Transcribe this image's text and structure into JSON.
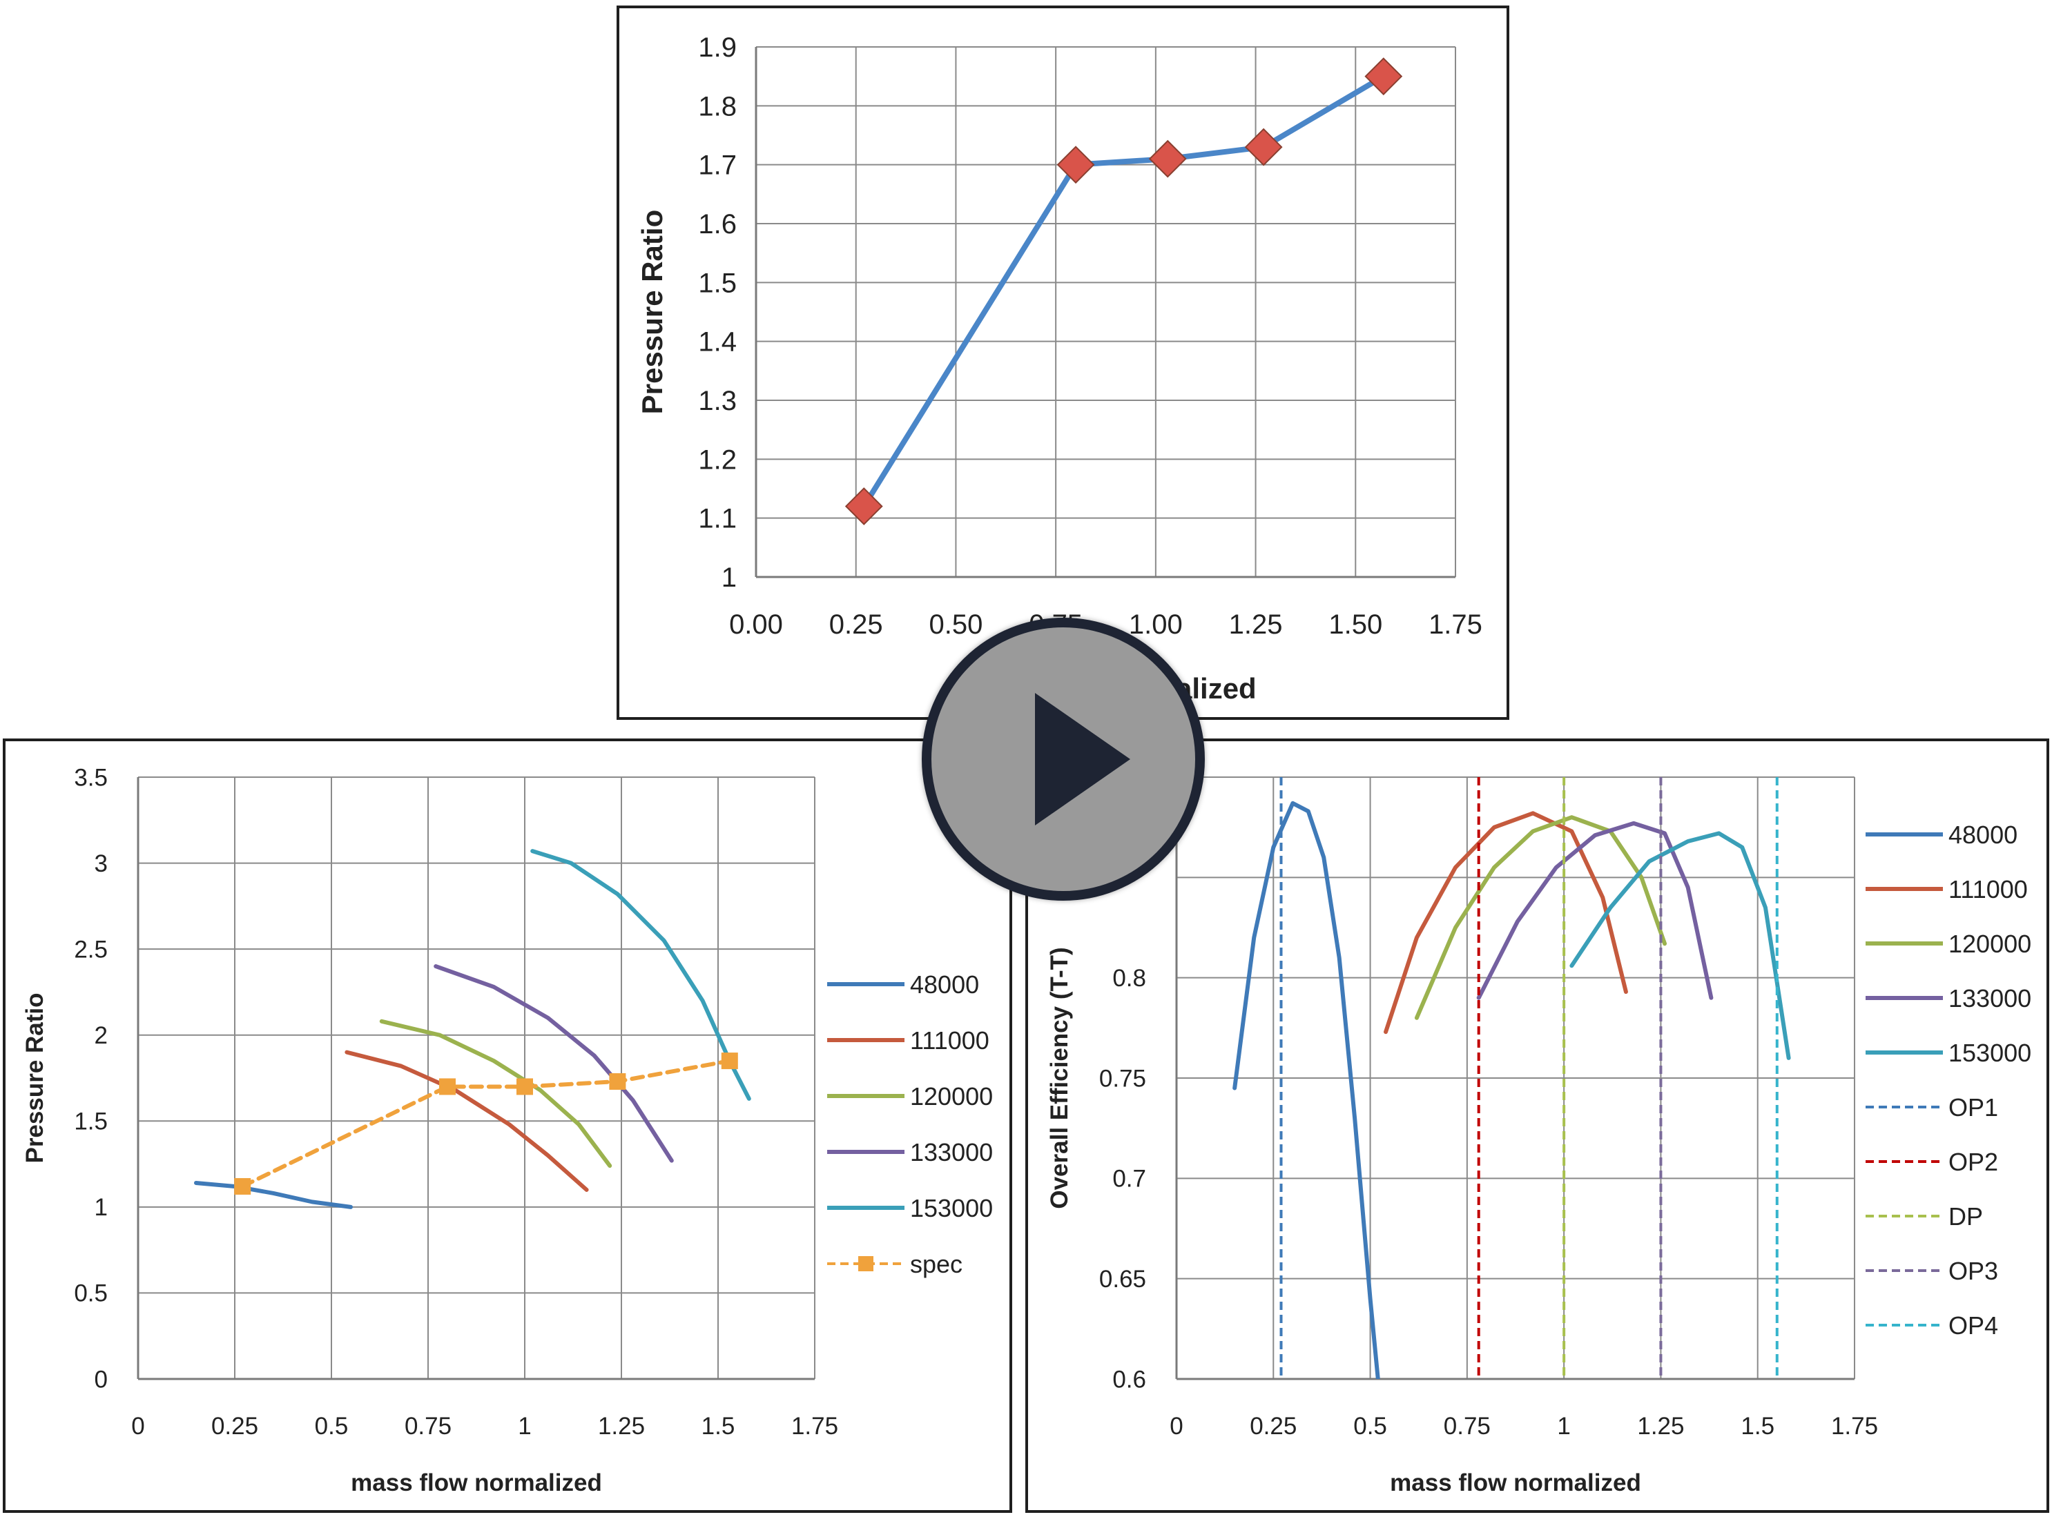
{
  "chart_data": [
    {
      "type": "line",
      "xlabel": "mass flow normalized",
      "ylabel": "Pressure Ratio",
      "xlim": [
        0,
        1.75
      ],
      "ylim": [
        1,
        1.9
      ],
      "x_ticks": [
        "0.00",
        "0.25",
        "0.50",
        "0.75",
        "1.00",
        "1.25",
        "1.50",
        "1.75"
      ],
      "y_ticks": [
        "1",
        "1.1",
        "1.2",
        "1.3",
        "1.4",
        "1.5",
        "1.6",
        "1.7",
        "1.8",
        "1.9"
      ],
      "grid": true,
      "series": [
        {
          "x": [
            0.27,
            0.8,
            1.03,
            1.27,
            1.57
          ],
          "y": [
            1.12,
            1.7,
            1.71,
            1.73,
            1.85
          ],
          "color": "#4a86c8",
          "marker": "diamond",
          "marker_color": "#d9544a"
        }
      ]
    },
    {
      "type": "line",
      "xlabel": "mass flow normalized",
      "ylabel": "Pressure Ratio",
      "xlim": [
        0,
        1.75
      ],
      "ylim": [
        0,
        3.5
      ],
      "x_ticks": [
        "0",
        "0.25",
        "0.5",
        "0.75",
        "1",
        "1.25",
        "1.5",
        "1.75"
      ],
      "y_ticks": [
        "0",
        "0.5",
        "1",
        "1.5",
        "2",
        "2.5",
        "3",
        "3.5"
      ],
      "grid": true,
      "legend_position": "right",
      "series": [
        {
          "name": "48000",
          "color": "#3f7ab8",
          "dashed": false,
          "x": [
            0.15,
            0.25,
            0.35,
            0.45,
            0.55
          ],
          "y": [
            1.14,
            1.12,
            1.08,
            1.03,
            1.0
          ]
        },
        {
          "name": "111000",
          "color": "#c55a3d",
          "dashed": false,
          "x": [
            0.54,
            0.68,
            0.82,
            0.96,
            1.06,
            1.16
          ],
          "y": [
            1.9,
            1.82,
            1.68,
            1.48,
            1.3,
            1.1
          ]
        },
        {
          "name": "120000",
          "color": "#9bb24e",
          "dashed": false,
          "x": [
            0.63,
            0.78,
            0.92,
            1.04,
            1.14,
            1.22
          ],
          "y": [
            2.08,
            2.0,
            1.85,
            1.68,
            1.48,
            1.24
          ]
        },
        {
          "name": "133000",
          "color": "#7460a0",
          "dashed": false,
          "x": [
            0.77,
            0.92,
            1.06,
            1.18,
            1.28,
            1.38
          ],
          "y": [
            2.4,
            2.28,
            2.1,
            1.88,
            1.62,
            1.27
          ]
        },
        {
          "name": "153000",
          "color": "#3a9fb8",
          "dashed": false,
          "x": [
            1.02,
            1.12,
            1.24,
            1.36,
            1.46,
            1.53,
            1.58
          ],
          "y": [
            3.07,
            3.0,
            2.82,
            2.55,
            2.2,
            1.85,
            1.63
          ]
        },
        {
          "name": "spec",
          "color": "#f0a23c",
          "dashed": true,
          "marker": "square",
          "x": [
            0.27,
            0.8,
            1.0,
            1.24,
            1.53
          ],
          "y": [
            1.12,
            1.7,
            1.7,
            1.73,
            1.85
          ]
        }
      ]
    },
    {
      "type": "line",
      "xlabel": "mass flow normalized",
      "ylabel": "Overall Efficiency (T-T)",
      "xlim": [
        0,
        1.75
      ],
      "ylim": [
        0.6,
        0.9
      ],
      "x_ticks": [
        "0",
        "0.25",
        "0.5",
        "0.75",
        "1",
        "1.25",
        "1.5",
        "1.75"
      ],
      "y_ticks": [
        "0.6",
        "0.65",
        "0.7",
        "0.75",
        "0.8"
      ],
      "grid": true,
      "legend_position": "right",
      "series": [
        {
          "name": "48000",
          "color": "#3f7ab8",
          "dashed": false,
          "x": [
            0.15,
            0.2,
            0.25,
            0.3,
            0.34,
            0.38,
            0.42,
            0.46,
            0.5,
            0.52
          ],
          "y": [
            0.745,
            0.82,
            0.865,
            0.887,
            0.883,
            0.86,
            0.81,
            0.73,
            0.64,
            0.6
          ]
        },
        {
          "name": "111000",
          "color": "#c55a3d",
          "dashed": false,
          "x": [
            0.54,
            0.62,
            0.72,
            0.82,
            0.92,
            1.02,
            1.1,
            1.16
          ],
          "y": [
            0.773,
            0.82,
            0.855,
            0.875,
            0.882,
            0.873,
            0.84,
            0.793
          ]
        },
        {
          "name": "120000",
          "color": "#9bb24e",
          "dashed": false,
          "x": [
            0.62,
            0.72,
            0.82,
            0.92,
            1.02,
            1.12,
            1.2,
            1.26
          ],
          "y": [
            0.78,
            0.825,
            0.855,
            0.873,
            0.88,
            0.873,
            0.85,
            0.817
          ]
        },
        {
          "name": "133000",
          "color": "#7460a0",
          "dashed": false,
          "x": [
            0.78,
            0.88,
            0.98,
            1.08,
            1.18,
            1.26,
            1.32,
            1.38
          ],
          "y": [
            0.79,
            0.828,
            0.855,
            0.871,
            0.877,
            0.872,
            0.845,
            0.79
          ]
        },
        {
          "name": "153000",
          "color": "#3a9fb8",
          "dashed": false,
          "x": [
            1.02,
            1.12,
            1.22,
            1.32,
            1.4,
            1.46,
            1.52,
            1.58
          ],
          "y": [
            0.806,
            0.835,
            0.858,
            0.868,
            0.872,
            0.865,
            0.835,
            0.76
          ]
        },
        {
          "name": "OP1",
          "color": "#3f7ab8",
          "dashed": true,
          "vline": 0.27
        },
        {
          "name": "OP2",
          "color": "#c00000",
          "dashed": true,
          "vline": 0.78
        },
        {
          "name": "DP",
          "color": "#a8c04e",
          "dashed": true,
          "vline": 1.0
        },
        {
          "name": "OP3",
          "color": "#7a6a9a",
          "dashed": true,
          "vline": 1.25
        },
        {
          "name": "OP4",
          "color": "#36b4cc",
          "dashed": true,
          "vline": 1.55
        }
      ]
    }
  ]
}
